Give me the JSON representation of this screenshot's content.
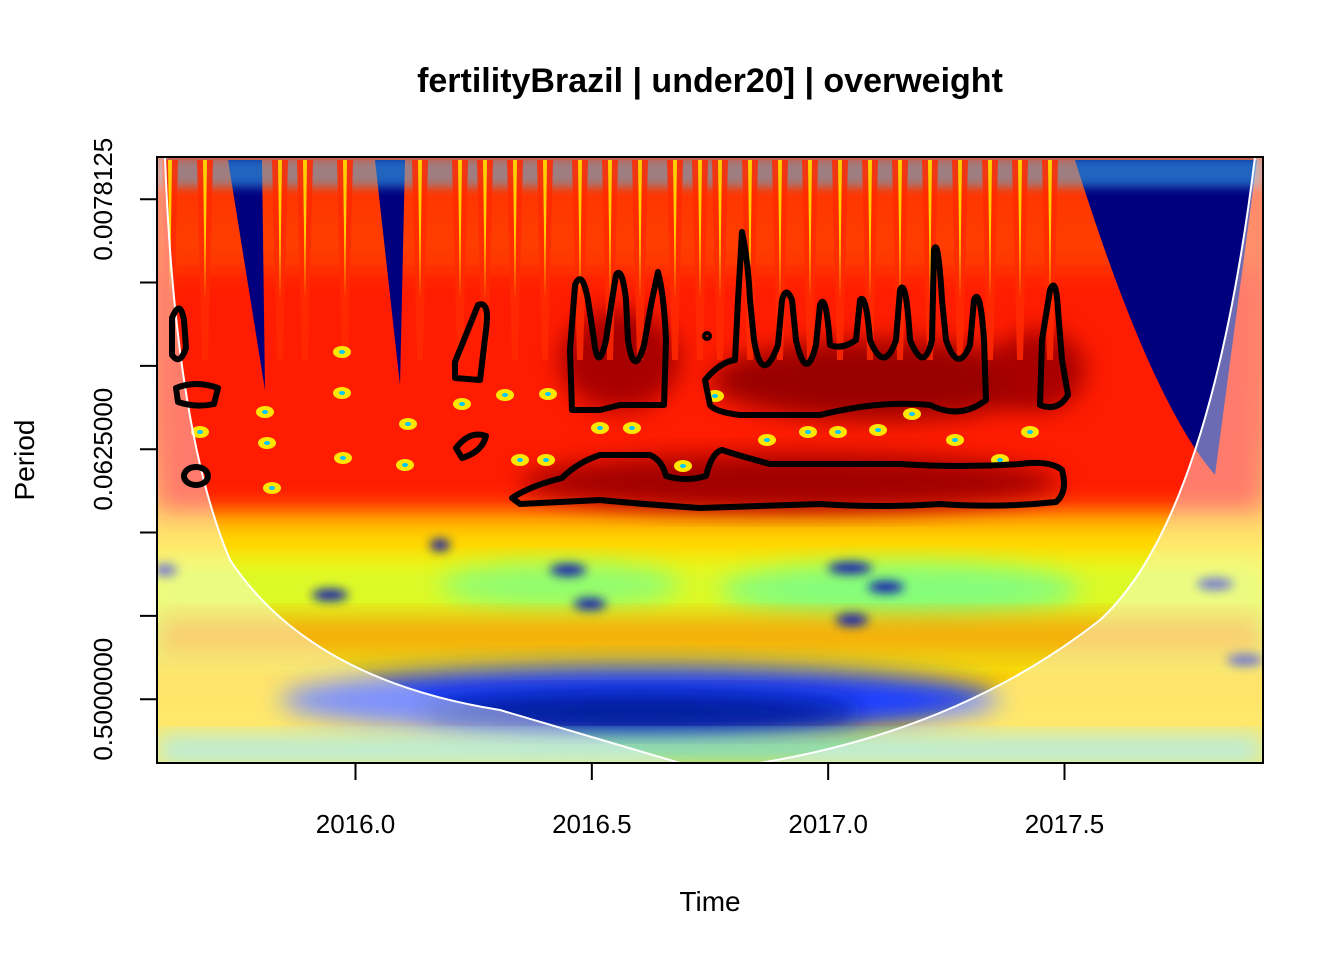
{
  "chart_data": {
    "type": "heatmap",
    "title": "fertilityBrazil | under20] | overweight",
    "xlabel": "Time",
    "ylabel": "Period",
    "x_ticks": [
      2016.0,
      2016.5,
      2017.0,
      2017.5
    ],
    "x_tick_labels": [
      "2016.0",
      "2016.5",
      "2017.0",
      "2017.5"
    ],
    "xlim": [
      2015.58,
      2017.92
    ],
    "y_scale": "log2",
    "y_reversed": true,
    "y_ticks": [
      0.0078125,
      0.015625,
      0.03125,
      0.0625,
      0.125,
      0.25,
      0.5
    ],
    "y_tick_labels": [
      "0.0078125",
      "",
      "",
      "0.0625000",
      "",
      "",
      "0.5000000"
    ],
    "ylim": [
      0.0055,
      0.85
    ],
    "colormap": [
      "#00007f",
      "#0000ff",
      "#007fff",
      "#00ffff",
      "#7fff7f",
      "#ffff00",
      "#ff7f00",
      "#ff0000",
      "#7f0000"
    ],
    "cone_of_influence": true,
    "significance_contours": true,
    "grid": false,
    "legend": "none"
  }
}
